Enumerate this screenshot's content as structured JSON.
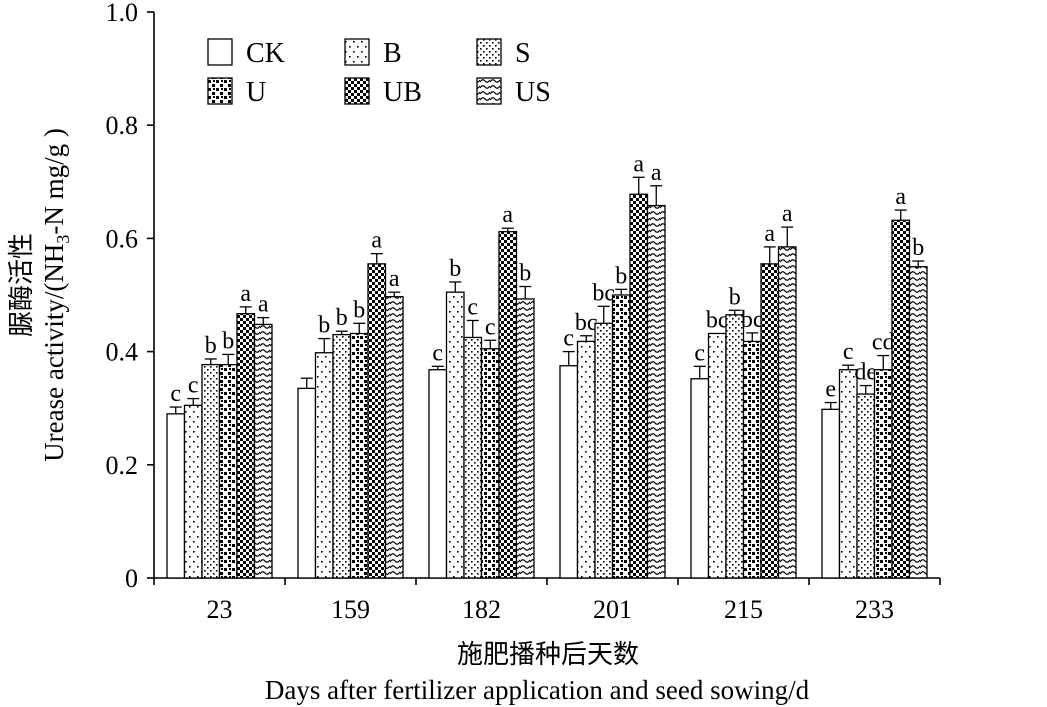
{
  "chart_data": {
    "type": "bar",
    "xlabel_cn": "施肥播种后天数",
    "xlabel_en": "Days after fertilizer application and seed sowing/d",
    "ylabel_cn": "脲酶活性",
    "ylabel_en_pre": "Urease activity/(NH",
    "ylabel_en_sub": "3",
    "ylabel_en_post": "-N mg/g )",
    "ylim": [
      0,
      1.0
    ],
    "yticks": [
      "0",
      "0.2",
      "0.4",
      "0.6",
      "0.8",
      "1.0"
    ],
    "ytick_values": [
      0,
      0.2,
      0.4,
      0.6,
      0.8,
      1.0
    ],
    "categories": [
      "23",
      "159",
      "182",
      "201",
      "215",
      "233"
    ],
    "legend_position": "top-left",
    "series": [
      {
        "name": "CK",
        "pattern": "blank",
        "values": [
          0.29,
          0.335,
          0.368,
          0.375,
          0.352,
          0.298
        ],
        "errors": [
          0.012,
          0.018,
          0.006,
          0.025,
          0.022,
          0.012
        ],
        "labels": [
          "c",
          "",
          "c",
          "c",
          "c",
          "e"
        ]
      },
      {
        "name": "B",
        "pattern": "sparse-dots",
        "values": [
          0.305,
          0.398,
          0.505,
          0.418,
          0.432,
          0.368
        ],
        "errors": [
          0.012,
          0.025,
          0.018,
          0.01,
          0.0,
          0.008
        ],
        "labels": [
          "c",
          "b",
          "b",
          "bc",
          "bc",
          "c"
        ]
      },
      {
        "name": "S",
        "pattern": "diag-dots",
        "values": [
          0.377,
          0.43,
          0.425,
          0.45,
          0.465,
          0.325
        ],
        "errors": [
          0.01,
          0.006,
          0.03,
          0.03,
          0.008,
          0.015
        ],
        "labels": [
          "b",
          "b",
          "c",
          "bc",
          "b",
          "de"
        ]
      },
      {
        "name": "U",
        "pattern": "dense-squares",
        "values": [
          0.377,
          0.432,
          0.405,
          0.5,
          0.418,
          0.368
        ],
        "errors": [
          0.018,
          0.018,
          0.015,
          0.01,
          0.015,
          0.025
        ],
        "labels": [
          "b",
          "b",
          "c",
          "b",
          "bc",
          "cd"
        ]
      },
      {
        "name": "UB",
        "pattern": "checker",
        "values": [
          0.467,
          0.555,
          0.612,
          0.678,
          0.555,
          0.632
        ],
        "errors": [
          0.012,
          0.018,
          0.006,
          0.03,
          0.03,
          0.018
        ],
        "labels": [
          "a",
          "a",
          "a",
          "a",
          "a",
          "a"
        ]
      },
      {
        "name": "US",
        "pattern": "wave",
        "values": [
          0.448,
          0.497,
          0.493,
          0.658,
          0.585,
          0.55
        ],
        "errors": [
          0.012,
          0.008,
          0.022,
          0.035,
          0.035,
          0.01
        ],
        "labels": [
          "a",
          "a",
          "b",
          "a",
          "a",
          "b"
        ]
      }
    ]
  }
}
